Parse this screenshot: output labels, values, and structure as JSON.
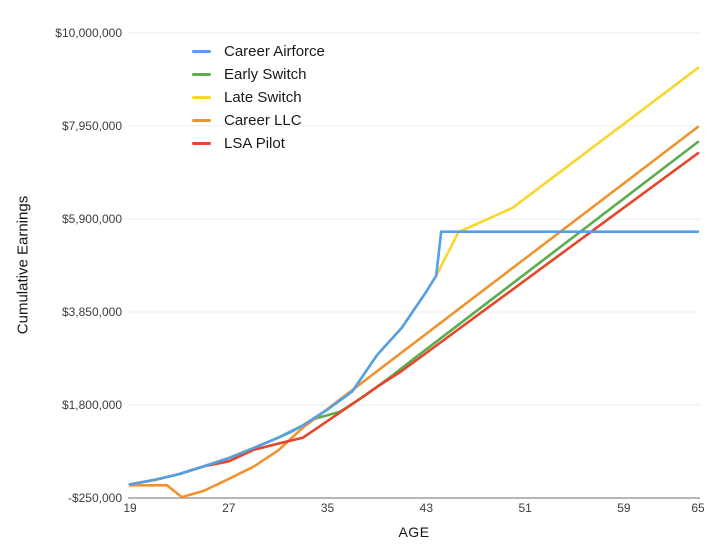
{
  "chart_data": {
    "type": "line",
    "title": "",
    "xlabel": "AGE",
    "ylabel": "Cumulative Earnings",
    "grid": "horizontal-only",
    "legend_position": "top-left-inside-plot",
    "x_axis": {
      "label": "AGE",
      "range": [
        19,
        65
      ],
      "ticks": [
        {
          "label": "19",
          "value": 19
        },
        {
          "label": "27",
          "value": 27
        },
        {
          "label": "35",
          "value": 35
        },
        {
          "label": "43",
          "value": 43
        },
        {
          "label": "51",
          "value": 51
        },
        {
          "label": "59",
          "value": 59
        },
        {
          "label": "65",
          "value": 65
        }
      ]
    },
    "y_axis": {
      "label": "Cumulative Earnings",
      "range": [
        -250000,
        10000000
      ],
      "ticks": [
        {
          "label": "$10,000,000",
          "value": 10000000
        },
        {
          "label": "$7,950,000",
          "value": 7950000
        },
        {
          "label": "$5,900,000",
          "value": 5900000
        },
        {
          "label": "$3,850,000",
          "value": 3850000
        },
        {
          "label": "$1,800,000",
          "value": 1800000
        },
        {
          "label": "-$250,000",
          "value": -250000
        }
      ]
    },
    "series": [
      {
        "name": "Career Airforce",
        "color": "#54A0E8",
        "points": [
          [
            19,
            50000
          ],
          [
            21,
            150000
          ],
          [
            23,
            280000
          ],
          [
            25,
            450000
          ],
          [
            27,
            630000
          ],
          [
            29,
            850000
          ],
          [
            31,
            1080000
          ],
          [
            33,
            1350000
          ],
          [
            35,
            1700000
          ],
          [
            37,
            2100000
          ],
          [
            39,
            2900000
          ],
          [
            41,
            3500000
          ],
          [
            43,
            4300000
          ],
          [
            43.8,
            4650000
          ],
          [
            44.2,
            5620000
          ],
          [
            65,
            5620000
          ]
        ]
      },
      {
        "name": "Early Switch",
        "color": "#5BAD4E",
        "points": [
          [
            19,
            50000
          ],
          [
            21,
            150000
          ],
          [
            23,
            280000
          ],
          [
            25,
            450000
          ],
          [
            27,
            630000
          ],
          [
            29,
            850000
          ],
          [
            31,
            1080000
          ],
          [
            32,
            1200000
          ],
          [
            34,
            1500000
          ],
          [
            36,
            1650000
          ],
          [
            38,
            2000000
          ],
          [
            40,
            2400000
          ],
          [
            42,
            2820000
          ],
          [
            65,
            7600000
          ]
        ]
      },
      {
        "name": "Late Switch",
        "color": "#F8D62B",
        "points": [
          [
            19,
            50000
          ],
          [
            21,
            150000
          ],
          [
            23,
            280000
          ],
          [
            25,
            450000
          ],
          [
            27,
            630000
          ],
          [
            29,
            850000
          ],
          [
            31,
            1080000
          ],
          [
            33,
            1350000
          ],
          [
            35,
            1700000
          ],
          [
            37,
            2100000
          ],
          [
            39,
            2900000
          ],
          [
            41,
            3500000
          ],
          [
            43,
            4300000
          ],
          [
            43.8,
            4650000
          ],
          [
            45.6,
            5610000
          ],
          [
            50,
            6150000
          ],
          [
            65,
            9230000
          ]
        ]
      },
      {
        "name": "Career LLC",
        "color": "#F0932F",
        "points": [
          [
            19,
            30000
          ],
          [
            22,
            30000
          ],
          [
            23.2,
            -230000
          ],
          [
            25,
            -90000
          ],
          [
            27,
            170000
          ],
          [
            29,
            440000
          ],
          [
            31,
            800000
          ],
          [
            33,
            1300000
          ],
          [
            65,
            7930000
          ]
        ]
      },
      {
        "name": "LSA Pilot",
        "color": "#E4472B",
        "points": [
          [
            19,
            50000
          ],
          [
            21,
            150000
          ],
          [
            23,
            280000
          ],
          [
            25,
            450000
          ],
          [
            27,
            560000
          ],
          [
            29,
            810000
          ],
          [
            31,
            950000
          ],
          [
            33,
            1080000
          ],
          [
            35,
            1450000
          ],
          [
            37,
            1820000
          ],
          [
            39,
            2200000
          ],
          [
            41,
            2550000
          ],
          [
            65,
            7350000
          ]
        ]
      }
    ]
  },
  "colors": {
    "gridline": "#ededed",
    "axis_line": "#9e9e9e",
    "tick_text": "#3d3d3d",
    "title_text": "#161616"
  }
}
